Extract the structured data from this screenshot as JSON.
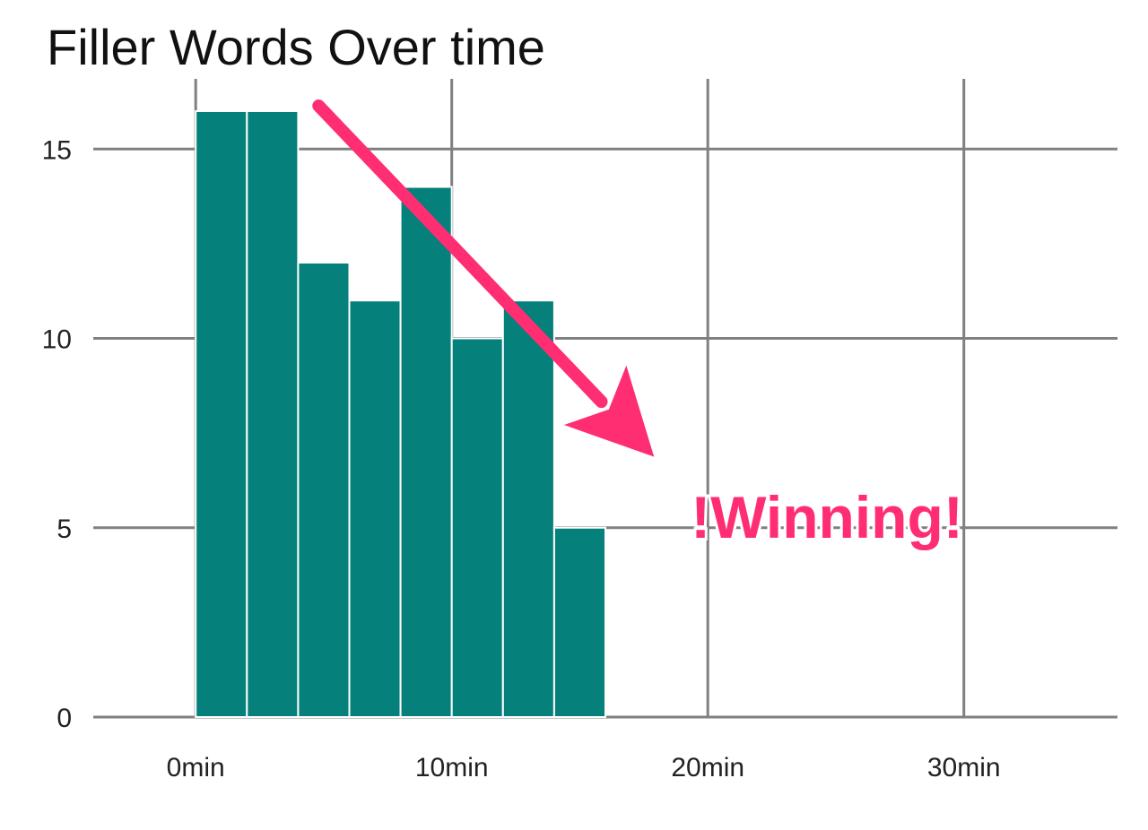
{
  "chart_data": {
    "type": "bar",
    "title": "Filler Words Over time",
    "xlabel": "",
    "ylabel": "",
    "x_bin_start": [
      0,
      2,
      4,
      6,
      8,
      10,
      12,
      14
    ],
    "x_bin_width": 2,
    "values": [
      16,
      16,
      12,
      11,
      14,
      10,
      11,
      5
    ],
    "xlim": [
      -4,
      36
    ],
    "ylim": [
      0,
      16
    ],
    "x_ticks": [
      0,
      10,
      20,
      30
    ],
    "x_tick_labels": [
      "0min",
      "10min",
      "20min",
      "30min"
    ],
    "y_ticks": [
      0,
      5,
      10,
      15
    ],
    "y_tick_labels": [
      "0",
      "5",
      "10",
      "15"
    ],
    "grid": true,
    "bar_color": "#05807b",
    "annotation": {
      "text": "!Winning!",
      "color": "#ff2d72",
      "arrow_from": [
        4.8,
        16
      ],
      "arrow_to": [
        17.9,
        6.4
      ]
    }
  }
}
